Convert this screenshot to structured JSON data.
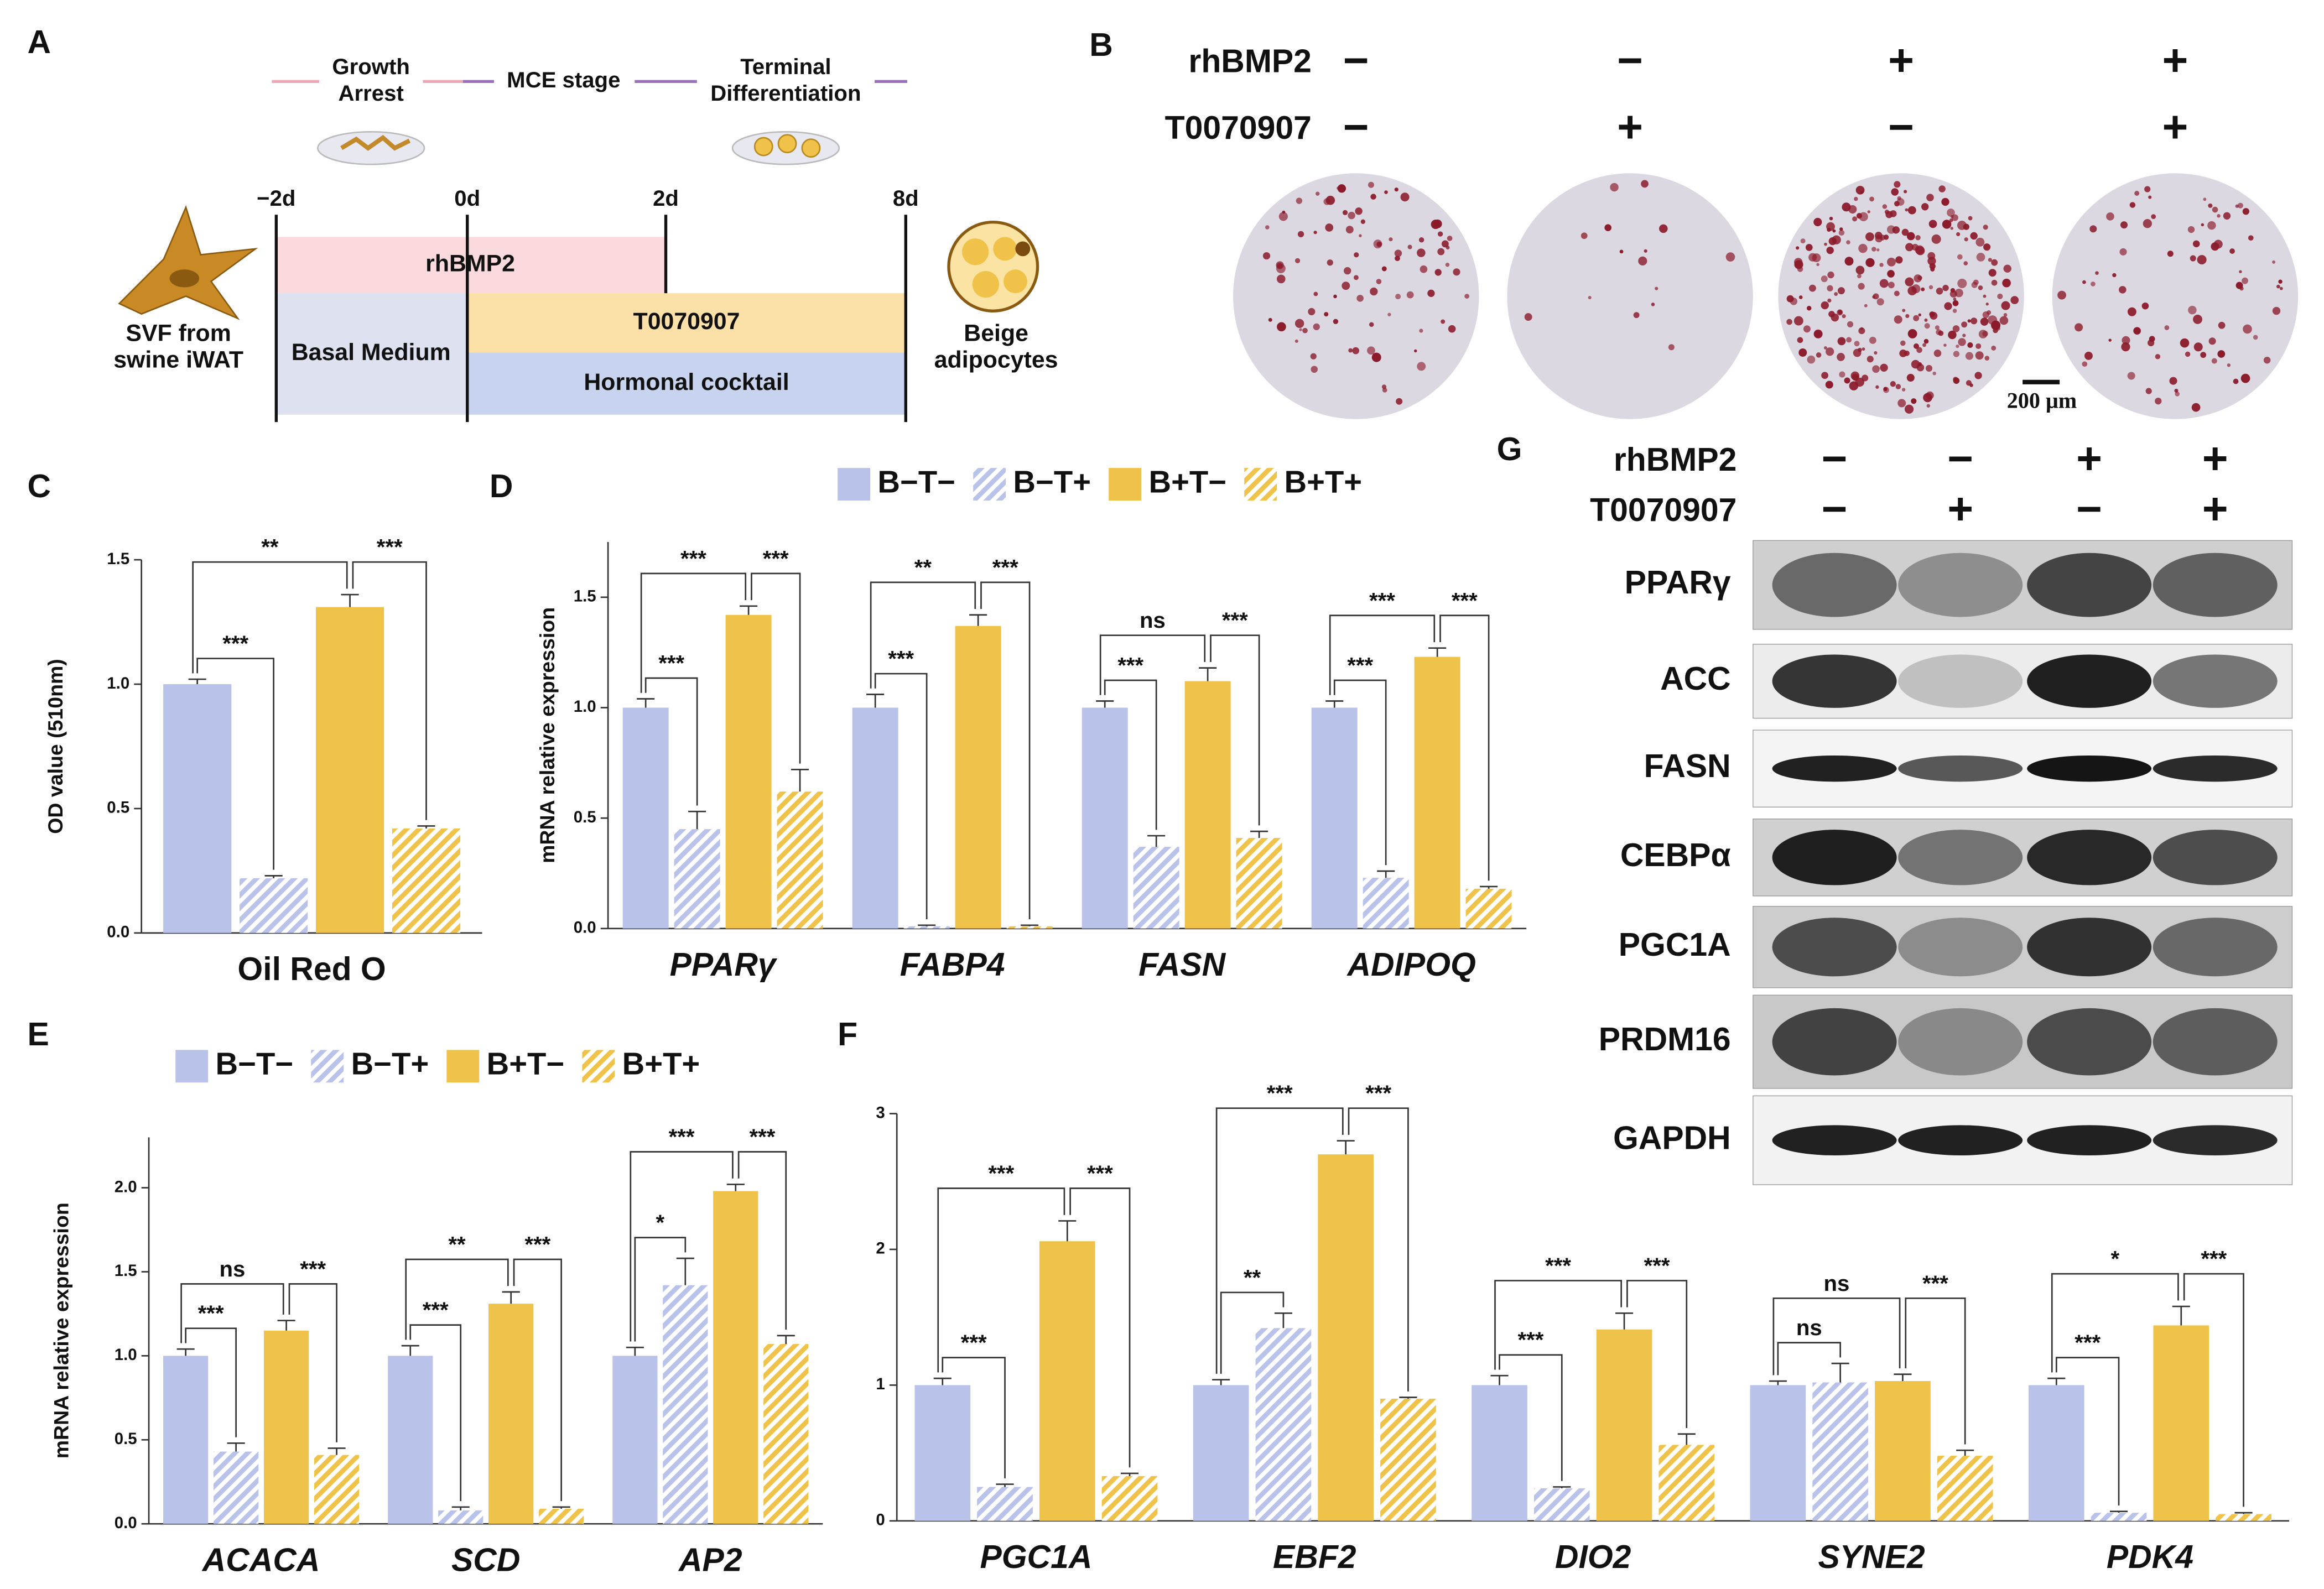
{
  "panel_labels": [
    "A",
    "B",
    "C",
    "D",
    "E",
    "F",
    "G"
  ],
  "diagram": {
    "stages": {
      "growth": [
        "Growth",
        "Arrest"
      ],
      "mce": "MCE stage",
      "terminal": [
        "Terminal",
        "Differentiation"
      ]
    },
    "days": [
      "−2d",
      "0d",
      "2d",
      "8d"
    ],
    "treatments": {
      "rhbmp2": "rhBMP2",
      "inhibitor": "T0070907",
      "basal": "Basal Medium",
      "cocktail": "Hormonal cocktail"
    },
    "start_cell": [
      "SVF from",
      "swine iWAT"
    ],
    "end_cell": [
      "Beige",
      "adipocytes"
    ]
  },
  "staining": {
    "rows": [
      {
        "label": "rhBMP2",
        "signs": [
          "−",
          "−",
          "+",
          "+"
        ]
      },
      {
        "label": "T0070907",
        "signs": [
          "−",
          "+",
          "−",
          "+"
        ]
      }
    ],
    "scale_bar": "200 μm"
  },
  "chart_data": [
    {
      "type": "bar",
      "y_label": "OD value (510nm)",
      "categories": [
        "Oil Red O"
      ],
      "category_style": "normal",
      "legend": false,
      "ylim": [
        0,
        1.5
      ],
      "yticks": [
        {
          "value": 0,
          "label": "0.0"
        },
        0.5,
        {
          "value": 1,
          "label": "1.0"
        },
        1.5
      ],
      "series": [
        {
          "color": "#b9c3ea",
          "hatch": false,
          "values": [
            1.0
          ],
          "errors": [
            0.02
          ]
        },
        {
          "color": "#b9c3ea",
          "hatch": true,
          "values": [
            0.22
          ],
          "errors": [
            0.01
          ]
        },
        {
          "color": "#efc24a",
          "hatch": false,
          "values": [
            1.31
          ],
          "errors": [
            0.05
          ]
        },
        {
          "color": "#efc24a",
          "hatch": true,
          "values": [
            0.42
          ],
          "errors": [
            0.01
          ]
        }
      ],
      "significance": [
        [
          "***",
          "**",
          "***"
        ]
      ]
    },
    {
      "type": "bar",
      "y_label": "mRNA relative expression",
      "categories": [
        "PPARγ",
        "FABP4",
        "FASN",
        "ADIPOQ"
      ],
      "category_style": "italic",
      "legend": true,
      "ylim": [
        0,
        1.75
      ],
      "yticks": [
        {
          "value": 0,
          "label": "0.0"
        },
        0.5,
        {
          "value": 1,
          "label": "1.0"
        },
        1.5
      ],
      "series": [
        {
          "name": "B−T−",
          "color": "#b9c3ea",
          "hatch": false,
          "values": [
            1.0,
            1.0,
            1.0,
            1.0
          ],
          "errors": [
            0.04,
            0.06,
            0.03,
            0.03
          ]
        },
        {
          "name": "B−T+",
          "color": "#b9c3ea",
          "hatch": true,
          "values": [
            0.45,
            0.01,
            0.37,
            0.23
          ],
          "errors": [
            0.08,
            0.005,
            0.05,
            0.03
          ]
        },
        {
          "name": "B+T−",
          "color": "#efc24a",
          "hatch": false,
          "values": [
            1.42,
            1.37,
            1.12,
            1.23
          ],
          "errors": [
            0.04,
            0.05,
            0.06,
            0.04
          ]
        },
        {
          "name": "B+T+",
          "color": "#efc24a",
          "hatch": true,
          "values": [
            0.62,
            0.01,
            0.41,
            0.18
          ],
          "errors": [
            0.1,
            0.005,
            0.03,
            0.01
          ]
        }
      ],
      "significance": [
        [
          "***",
          "***",
          "***"
        ],
        [
          "***",
          "**",
          "***"
        ],
        [
          "***",
          "ns",
          "***"
        ],
        [
          "***",
          "***",
          "***"
        ]
      ]
    },
    {
      "type": "bar",
      "y_label": "mRNA relative expression",
      "categories": [
        "ACACA",
        "SCD",
        "AP2"
      ],
      "category_style": "italic",
      "legend": true,
      "ylim": [
        0,
        2.3
      ],
      "yticks": [
        {
          "value": 0,
          "label": "0.0"
        },
        0.5,
        {
          "value": 1,
          "label": "1.0"
        },
        1.5,
        {
          "value": 2,
          "label": "2.0"
        }
      ],
      "series": [
        {
          "name": "B−T−",
          "color": "#b9c3ea",
          "hatch": false,
          "values": [
            1.0,
            1.0,
            1.0
          ],
          "errors": [
            0.04,
            0.06,
            0.05
          ]
        },
        {
          "name": "B−T+",
          "color": "#b9c3ea",
          "hatch": true,
          "values": [
            0.43,
            0.08,
            1.42
          ],
          "errors": [
            0.05,
            0.02,
            0.16
          ]
        },
        {
          "name": "B+T−",
          "color": "#efc24a",
          "hatch": false,
          "values": [
            1.15,
            1.31,
            1.98
          ],
          "errors": [
            0.06,
            0.07,
            0.04
          ]
        },
        {
          "name": "B+T+",
          "color": "#efc24a",
          "hatch": true,
          "values": [
            0.41,
            0.09,
            1.07
          ],
          "errors": [
            0.04,
            0.01,
            0.05
          ]
        }
      ],
      "significance": [
        [
          "***",
          "ns",
          "***"
        ],
        [
          "***",
          "**",
          "***"
        ],
        [
          "*",
          "***",
          "***"
        ]
      ]
    },
    {
      "type": "bar",
      "categories": [
        "PGC1A",
        "EBF2",
        "DIO2",
        "SYNE2",
        "PDK4"
      ],
      "category_style": "italic",
      "legend": false,
      "ylim": [
        0,
        3
      ],
      "yticks": [
        0,
        1,
        2,
        3
      ],
      "series": [
        {
          "color": "#b9c3ea",
          "hatch": false,
          "values": [
            1.0,
            1.0,
            1.0,
            1.0,
            1.0
          ],
          "errors": [
            0.05,
            0.04,
            0.07,
            0.03,
            0.05
          ]
        },
        {
          "color": "#b9c3ea",
          "hatch": true,
          "values": [
            0.25,
            1.42,
            0.24,
            1.02,
            0.06
          ],
          "errors": [
            0.02,
            0.11,
            0.01,
            0.14,
            0.01
          ]
        },
        {
          "color": "#efc24a",
          "hatch": false,
          "values": [
            2.06,
            2.7,
            1.41,
            1.03,
            1.44
          ],
          "errors": [
            0.15,
            0.1,
            0.12,
            0.05,
            0.14
          ]
        },
        {
          "color": "#efc24a",
          "hatch": true,
          "values": [
            0.33,
            0.9,
            0.56,
            0.48,
            0.05
          ],
          "errors": [
            0.02,
            0.01,
            0.08,
            0.04,
            0.01
          ]
        }
      ],
      "significance": [
        [
          "***",
          "***",
          "***"
        ],
        [
          "**",
          "***",
          "***"
        ],
        [
          "***",
          "***",
          "***"
        ],
        [
          "ns",
          "ns",
          "***"
        ],
        [
          "***",
          "*",
          "***"
        ]
      ]
    }
  ],
  "blot": {
    "rows": [
      {
        "label": "rhBMP2",
        "signs": [
          "−",
          "−",
          "+",
          "+"
        ]
      },
      {
        "label": "T0070907",
        "signs": [
          "−",
          "+",
          "−",
          "+"
        ]
      }
    ],
    "proteins": [
      "PPARγ",
      "ACC",
      "FASN",
      "CEBPα",
      "PGC1A",
      "PRDM16",
      "GAPDH"
    ]
  }
}
